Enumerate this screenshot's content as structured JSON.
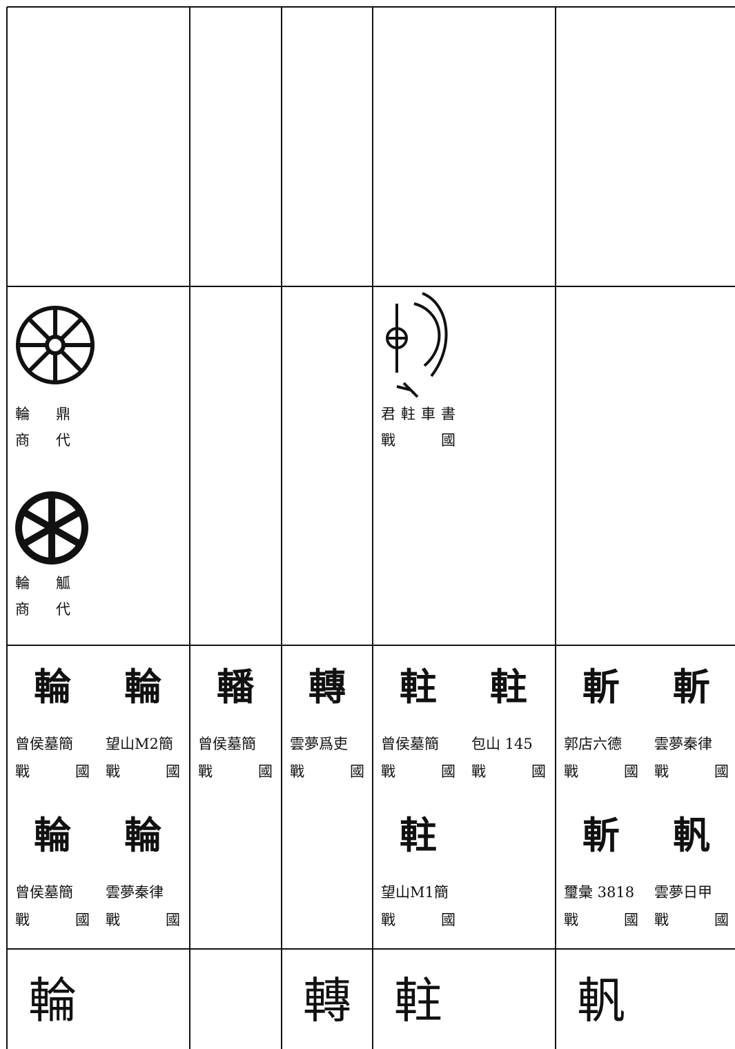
{
  "rows": [
    [
      [],
      [],
      [],
      [],
      []
    ],
    [
      [
        {
          "source": "輪 鼎",
          "era": "商 代"
        },
        {
          "source": "輪 觚",
          "era": "商 代"
        }
      ],
      [],
      [],
      [
        {
          "source": "君軴車書",
          "era": "戰 國"
        }
      ],
      []
    ],
    [
      [
        {
          "glyph": "輪",
          "source": "曾侯墓簡",
          "era": "戰 國"
        },
        {
          "glyph": "輪",
          "source": "望山M2簡",
          "era": "戰 國"
        },
        {
          "glyph": "輪",
          "source": "曾侯墓簡",
          "era": "戰 國"
        },
        {
          "glyph": "輪",
          "source": "雲夢秦律",
          "era": "戰 國"
        }
      ],
      [
        {
          "glyph": "轓",
          "source": "曾侯墓簡",
          "era": "戰 國"
        }
      ],
      [
        {
          "glyph": "轉",
          "source": "雲夢爲吏",
          "era": "戰 國"
        }
      ],
      [
        {
          "glyph": "軴",
          "source": "曾侯墓簡",
          "era": "戰 國"
        },
        {
          "glyph": "軴",
          "source": "包山 145",
          "era": "戰 國"
        },
        {
          "glyph": "軴",
          "source": "望山M1簡",
          "era": "戰 國"
        }
      ],
      [
        {
          "glyph": "斬",
          "source": "郭店六德",
          "era": "戰 國"
        },
        {
          "glyph": "斬",
          "source": "雲夢秦律",
          "era": "戰 國"
        },
        {
          "glyph": "斬",
          "source": "璽彙 3818",
          "era": "戰 國"
        },
        {
          "glyph": "軓",
          "source": "雲夢日甲",
          "era": "戰 國"
        }
      ]
    ],
    [
      [
        {
          "glyph": "輪"
        }
      ],
      [],
      [
        {
          "glyph": "轉"
        }
      ],
      [
        {
          "glyph": "軴"
        }
      ],
      [
        {
          "glyph": "軓"
        }
      ]
    ]
  ]
}
